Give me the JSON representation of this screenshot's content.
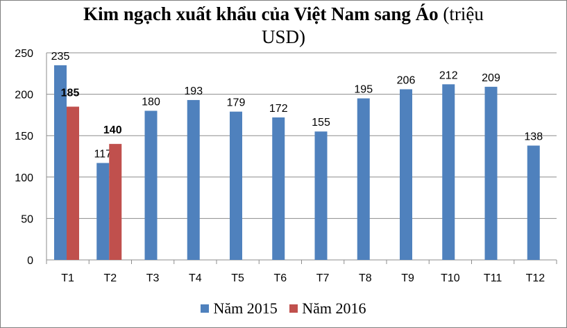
{
  "chart_data": {
    "type": "bar",
    "title_bold": "Kim ngạch xuất khẩu của Việt Nam sang Áo",
    "title_rest": " (triệu",
    "title_line2": "USD)",
    "categories": [
      "T1",
      "T2",
      "T3",
      "T4",
      "T5",
      "T6",
      "T7",
      "T8",
      "T9",
      "T10",
      "T11",
      "T12"
    ],
    "series": [
      {
        "name": "Năm 2015",
        "color": "#4f81bd",
        "values": [
          235,
          117,
          180,
          193,
          179,
          172,
          155,
          195,
          206,
          212,
          209,
          138
        ]
      },
      {
        "name": "Năm 2016",
        "color": "#c0504d",
        "values": [
          185,
          140,
          null,
          null,
          null,
          null,
          null,
          null,
          null,
          null,
          null,
          null
        ]
      }
    ],
    "yticks": [
      0,
      50,
      100,
      150,
      200,
      250
    ],
    "ylim": [
      0,
      250
    ],
    "grid": true,
    "legend_position": "bottom"
  }
}
